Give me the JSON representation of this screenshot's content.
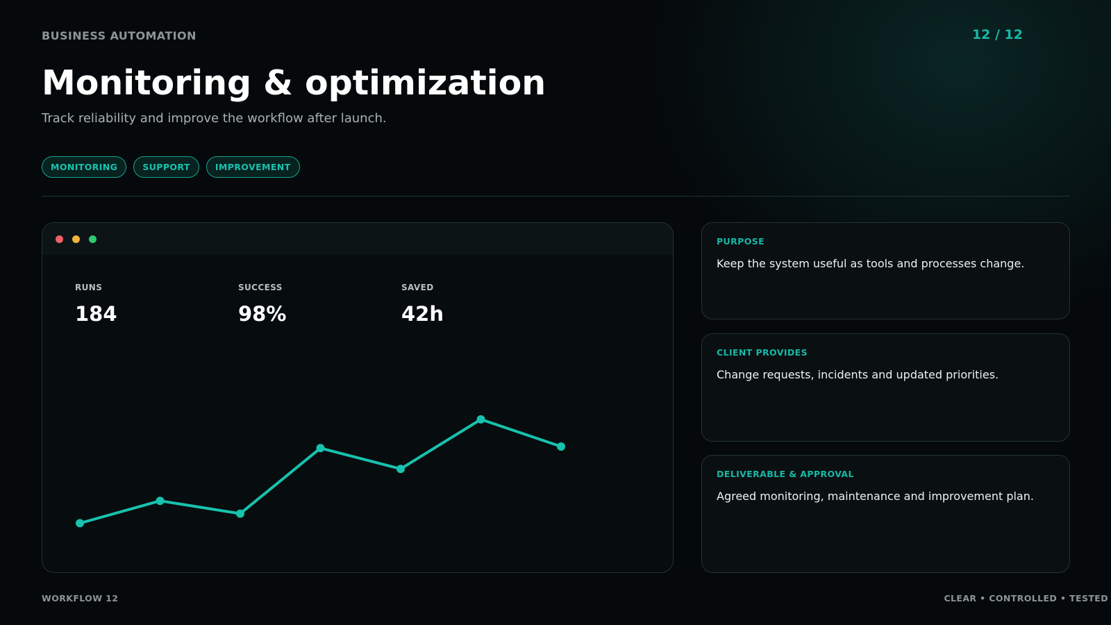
{
  "header": {
    "kicker": "BUSINESS AUTOMATION",
    "page_indicator": "12 / 12",
    "title": "Monitoring & optimization",
    "subtitle": "Track reliability and improve the workflow after launch."
  },
  "tags": [
    "MONITORING",
    "SUPPORT",
    "IMPROVEMENT"
  ],
  "dashboard": {
    "window_controls": [
      "red-dot",
      "yellow-dot",
      "green-dot"
    ],
    "stats": [
      {
        "label": "RUNS",
        "value": "184"
      },
      {
        "label": "SUCCESS",
        "value": "98%"
      },
      {
        "label": "SAVED",
        "value": "42h"
      }
    ],
    "accent_color": "#17c2ae"
  },
  "chart_data": {
    "type": "line",
    "title": "",
    "xlabel": "",
    "ylabel": "",
    "x": [
      1,
      2,
      3,
      4,
      5,
      6,
      7
    ],
    "series": [
      {
        "values": [
          0.12,
          0.26,
          0.18,
          0.59,
          0.46,
          0.77,
          0.6
        ]
      }
    ],
    "ylim": [
      0,
      1
    ],
    "grid": false,
    "axes_visible": false,
    "markers": true,
    "color": "#17c2ae"
  },
  "cards": [
    {
      "label": "PURPOSE",
      "text": "Keep the system useful as tools and processes change."
    },
    {
      "label": "CLIENT PROVIDES",
      "text": "Change requests, incidents and updated priorities."
    },
    {
      "label": "DELIVERABLE & APPROVAL",
      "text": "Agreed monitoring, maintenance and improvement plan."
    }
  ],
  "footer": {
    "left": "WORKFLOW 12",
    "right": "CLEAR • CONTROLLED • TESTED"
  }
}
